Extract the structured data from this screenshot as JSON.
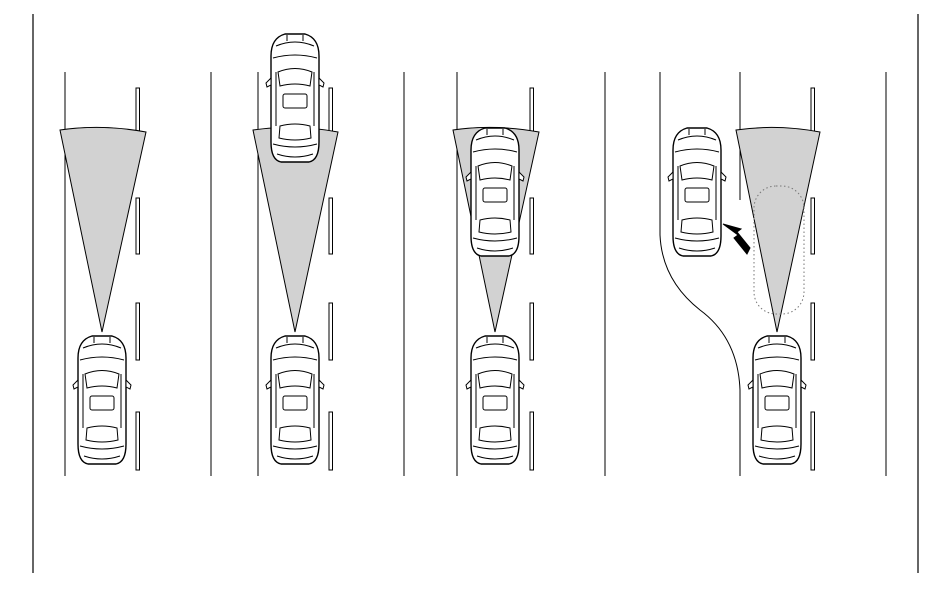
{
  "diagram": {
    "colors": {
      "background": "#ffffff",
      "ink": "#000000",
      "beam": "#d2d2d2",
      "ghost_outline": "#777777"
    },
    "panels": [
      {
        "id": "panel-1",
        "name": "clear-road",
        "beam_blocked": false,
        "vehicle_ahead": "none"
      },
      {
        "id": "panel-2",
        "name": "vehicle-ahead-far",
        "beam_blocked": false,
        "vehicle_ahead": "far"
      },
      {
        "id": "panel-3",
        "name": "vehicle-ahead-near",
        "beam_blocked": true,
        "vehicle_ahead": "near"
      },
      {
        "id": "panel-4",
        "name": "vehicle-leaving-lane",
        "beam_blocked": false,
        "vehicle_ahead": "moved-to-adjacent-lane",
        "arrow_icon": "arrow-icon",
        "ghost_outline": true
      }
    ]
  }
}
